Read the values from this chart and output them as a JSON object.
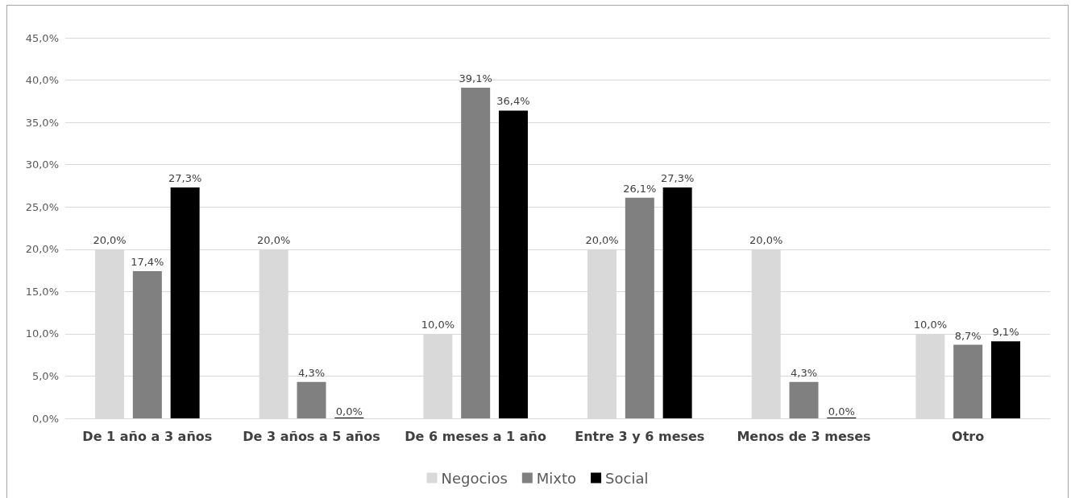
{
  "chart_data": {
    "type": "bar",
    "categories": [
      "De 1 año a 3 años",
      "De 3 años a 5 años",
      "De 6 meses a 1 año",
      "Entre 3 y 6 meses",
      "Menos de 3 meses",
      "Otro"
    ],
    "series": [
      {
        "name": "Negocios",
        "color": "#d9d9d9",
        "values": [
          20.0,
          20.0,
          10.0,
          20.0,
          20.0,
          10.0
        ],
        "value_labels": [
          "20,0%",
          "20,0%",
          "10,0%",
          "20,0%",
          "20,0%",
          "10,0%"
        ]
      },
      {
        "name": "Mixto",
        "color": "#808080",
        "values": [
          17.4,
          4.3,
          39.1,
          26.1,
          4.3,
          8.7
        ],
        "value_labels": [
          "17,4%",
          "4,3%",
          "39,1%",
          "26,1%",
          "4,3%",
          "8,7%"
        ]
      },
      {
        "name": "Social",
        "color": "#000000",
        "values": [
          27.3,
          0.0,
          36.4,
          27.3,
          0.0,
          9.1
        ],
        "value_labels": [
          "27,3%",
          "0,0%",
          "36,4%",
          "27,3%",
          "0,0%",
          "9,1%"
        ]
      }
    ],
    "ylim": [
      0,
      45
    ],
    "yticks": [
      {
        "value": 0,
        "label": "0,0%"
      },
      {
        "value": 5,
        "label": "5,0%"
      },
      {
        "value": 10,
        "label": "10,0%"
      },
      {
        "value": 15,
        "label": "15,0%"
      },
      {
        "value": 20,
        "label": "20,0%"
      },
      {
        "value": 25,
        "label": "25,0%"
      },
      {
        "value": 30,
        "label": "30,0%"
      },
      {
        "value": 35,
        "label": "35,0%"
      },
      {
        "value": 40,
        "label": "40,0%"
      },
      {
        "value": 45,
        "label": "45,0%"
      }
    ],
    "grid": "y",
    "legend": "bottom"
  }
}
